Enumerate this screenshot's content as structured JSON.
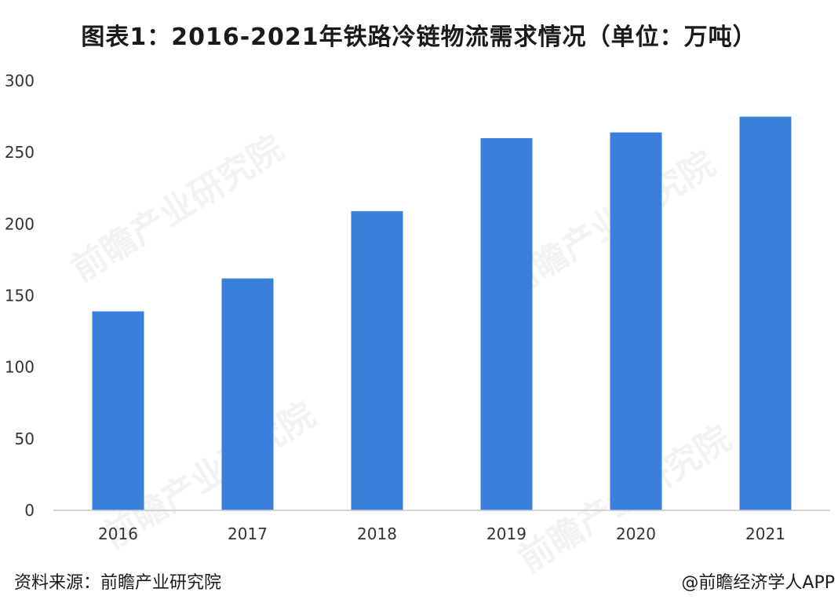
{
  "title": "图表1：2016-2021年铁路冷链物流需求情况（单位：万吨）",
  "source": "资料来源：前瞻产业研究院",
  "credit": "@前瞻经济学人APP",
  "watermark": "前瞻产业研究院",
  "colors": {
    "bar": "#3a7fdc",
    "axis": "#c8c8c8"
  },
  "chart_data": {
    "type": "bar",
    "categories": [
      "2016",
      "2017",
      "2018",
      "2019",
      "2020",
      "2021"
    ],
    "values": [
      139,
      162,
      209,
      260,
      264,
      275
    ],
    "xlabel": "",
    "ylabel": "",
    "ylim": [
      0,
      300
    ],
    "yticks": [
      0,
      50,
      100,
      150,
      200,
      250,
      300
    ],
    "grid": false,
    "legend": "none"
  }
}
